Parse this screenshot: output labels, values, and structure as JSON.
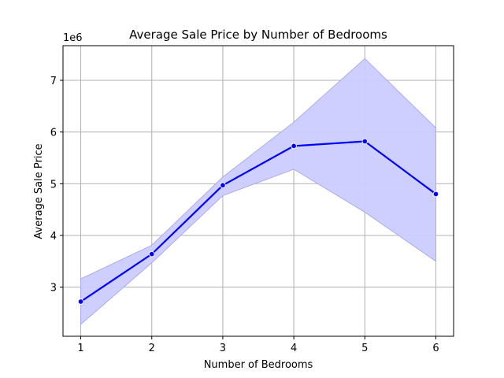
{
  "chart_data": {
    "type": "line",
    "title": "Average Sale Price by Number of Bedrooms",
    "xlabel": "Number of Bedrooms",
    "ylabel": "Average Sale Price",
    "y_offset_label": "1e6",
    "x": [
      1,
      2,
      3,
      4,
      5,
      6
    ],
    "x_tick_labels": [
      "1",
      "2",
      "3",
      "4",
      "5",
      "6"
    ],
    "y_ticks": [
      3,
      4,
      5,
      6,
      7
    ],
    "y_tick_labels": [
      "3",
      "4",
      "5",
      "6",
      "7"
    ],
    "y_scale": 1000000,
    "xlim": [
      0.75,
      6.25
    ],
    "ylim": [
      2050000,
      7670000
    ],
    "grid": true,
    "series": [
      {
        "values": [
          2720000,
          3640000,
          4970000,
          5730000,
          5820000,
          4800000
        ],
        "ci_low": [
          2280000,
          3470000,
          4770000,
          5280000,
          4450000,
          3500000
        ],
        "ci_high": [
          3160000,
          3810000,
          5130000,
          6190000,
          7420000,
          6080000
        ],
        "color": "#0000ff",
        "band_color": "#ccccff",
        "band_edge_color": "#aaaaf5"
      }
    ]
  }
}
